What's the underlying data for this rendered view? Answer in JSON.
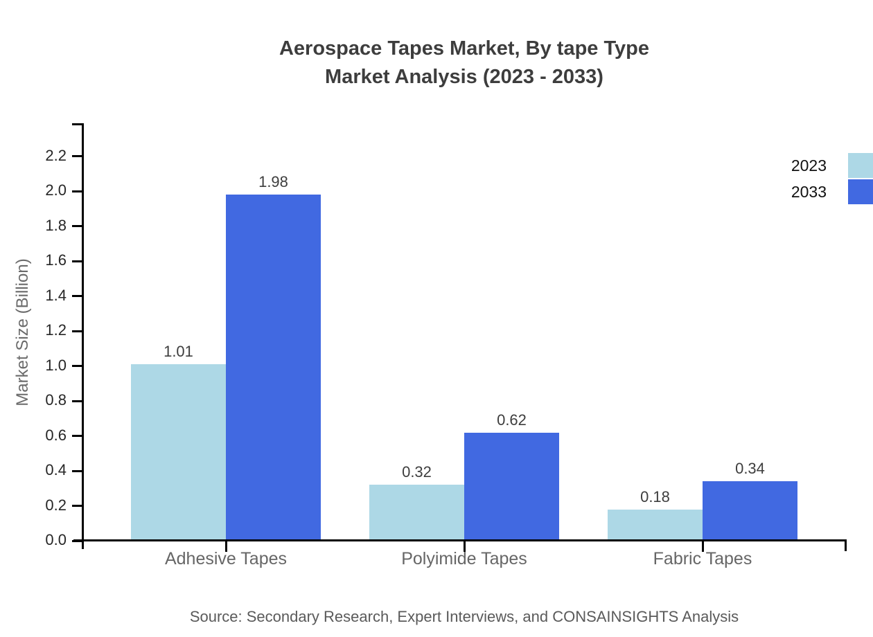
{
  "title": {
    "line1": "Aerospace Tapes Market, By tape Type",
    "line2": "Market Analysis (2023 - 2033)"
  },
  "source": "Source: Secondary Research, Expert Interviews, and CONSAINSIGHTS Analysis",
  "chart_data": {
    "type": "bar",
    "title": "Aerospace Tapes Market, By tape Type Market Analysis (2023 - 2033)",
    "categories": [
      "Adhesive Tapes",
      "Polyimide Tapes",
      "Fabric Tapes"
    ],
    "series": [
      {
        "name": "2023",
        "color": "#ADD8E6",
        "values": [
          1.01,
          0.32,
          0.18
        ]
      },
      {
        "name": "2033",
        "color": "#4169E1",
        "values": [
          1.98,
          0.62,
          0.34
        ]
      }
    ],
    "xlabel": "",
    "ylabel": "Market Size (Billion)",
    "ylim": [
      0,
      2.2
    ],
    "ytick_step": 0.2,
    "ytick_labels": [
      "0.0",
      "0.2",
      "0.4",
      "0.6",
      "0.8",
      "1.0",
      "1.2",
      "1.4",
      "1.6",
      "1.8",
      "2.0",
      "2.2"
    ],
    "grid": false,
    "legend_position": "top-right",
    "value_labels": true,
    "value_label_format": "2-decimals"
  },
  "colors": {
    "title_text": "#3d3d3d",
    "axis_line": "#000000",
    "tick_label": "#262626",
    "category_label": "#666666",
    "value_label": "#3d3d3d",
    "y_axis_title": "#6b6b6b",
    "source_text": "#5a5a5a",
    "background": "#ffffff"
  }
}
